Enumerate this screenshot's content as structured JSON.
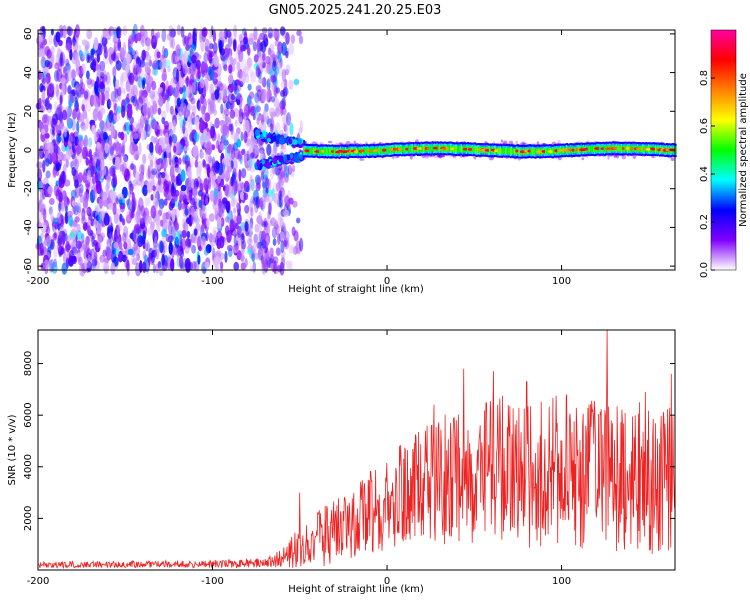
{
  "figure_title": "GN05.2025.241.20.25.E03",
  "chart_data": [
    {
      "type": "heatmap",
      "title": "",
      "xlabel": "Height of straight line (km)",
      "ylabel": "Frequency (Hz)",
      "xlim": [
        -200,
        165
      ],
      "ylim": [
        -62,
        62
      ],
      "xticks": [
        -200,
        -100,
        0,
        100
      ],
      "xtick_labels": [
        "-200",
        "-100",
        "0",
        "100"
      ],
      "yticks": [
        -60,
        -40,
        -20,
        0,
        20,
        40,
        60
      ],
      "ytick_labels": [
        "-60",
        "-40",
        "-20",
        "0",
        "20",
        "40",
        "60"
      ],
      "colorbar": {
        "label": "Normalized spectral amplitude",
        "range": [
          0.0,
          1.0
        ],
        "ticks": [
          0.0,
          0.2,
          0.4,
          0.6,
          0.8
        ],
        "tick_labels": [
          "0.0",
          "0.2",
          "0.4",
          "0.6",
          "0.8"
        ],
        "colormap": [
          "#ffffff",
          "#8000ff",
          "#0000ff",
          "#00ffff",
          "#00ff00",
          "#ffff00",
          "#ff8000",
          "#ff0000",
          "#ff00a0"
        ]
      },
      "features": {
        "noise_region_km": [
          -200,
          -57
        ],
        "noise_amplitude": 0.15,
        "split_region_km": [
          -75,
          -48
        ],
        "split_offsets_hz": [
          8,
          -8
        ],
        "signal_band_km": [
          -48,
          165
        ],
        "signal_center_hz": 0,
        "signal_halfwidth_hz": 3.5,
        "signal_peak_amplitude": 0.9
      }
    },
    {
      "type": "line",
      "title": "",
      "xlabel": "Height of straight line (km)",
      "ylabel": "SNR (10 * v/v)",
      "xlim": [
        -200,
        165
      ],
      "ylim": [
        0,
        9300
      ],
      "xticks": [
        -200,
        -100,
        0,
        100
      ],
      "xtick_labels": [
        "-200",
        "-100",
        "0",
        "100"
      ],
      "yticks": [
        2000,
        4000,
        6000,
        8000
      ],
      "ytick_labels": [
        "2000",
        "4000",
        "6000",
        "8000"
      ],
      "series": [
        {
          "name": "SNR",
          "color": "#ee2222",
          "envelope": {
            "x": [
              -200,
              -150,
              -100,
              -70,
              -60,
              -50,
              -40,
              -30,
              -20,
              -10,
              0,
              10,
              20,
              30,
              40,
              50,
              60,
              70,
              80,
              90,
              100,
              110,
              120,
              130,
              140,
              150,
              160,
              165
            ],
            "mean": [
              200,
              220,
              240,
              280,
              450,
              900,
              1200,
              1500,
              1800,
              2200,
              2500,
              2900,
              3200,
              3400,
              3600,
              3800,
              3800,
              3900,
              3700,
              3800,
              3900,
              3700,
              3800,
              3600,
              3700,
              3500,
              3600,
              3400
            ],
            "spread": [
              120,
              130,
              150,
              200,
              350,
              900,
              1100,
              1300,
              1500,
              1700,
              1900,
              2100,
              2300,
              2500,
              2700,
              2900,
              2900,
              2900,
              2900,
              2900,
              2900,
              2900,
              2900,
              2900,
              2900,
              2900,
              2900,
              2900
            ]
          },
          "peaks": [
            {
              "x": 44,
              "y": 7800
            },
            {
              "x": 61,
              "y": 7700
            },
            {
              "x": 126,
              "y": 9300
            },
            {
              "x": 163,
              "y": 7600
            },
            {
              "x": 80,
              "y": 7300
            },
            {
              "x": 27,
              "y": 6400
            },
            {
              "x": 103,
              "y": 6800
            },
            {
              "x": 148,
              "y": 6900
            },
            {
              "x": -50,
              "y": 3000
            }
          ]
        }
      ]
    }
  ]
}
